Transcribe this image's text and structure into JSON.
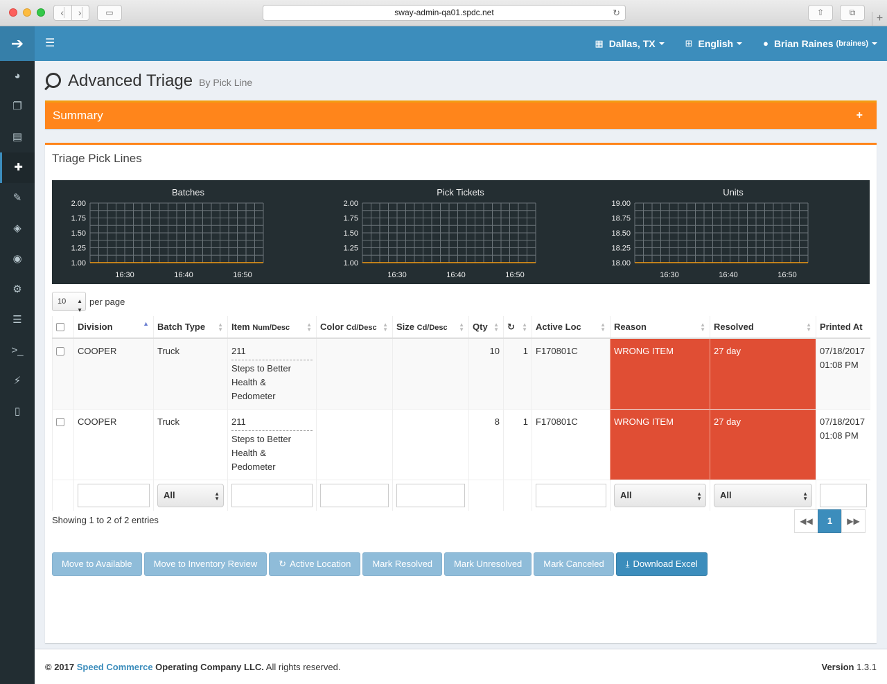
{
  "browser": {
    "url": "sway-admin-qa01.spdc.net",
    "back_icon": "chevron-left-icon",
    "forward_icon": "chevron-right-icon"
  },
  "topbar": {
    "location": "Dallas, TX",
    "language": "English",
    "user_name": "Brian Raines",
    "user_login": "(braines)"
  },
  "page": {
    "title": "Advanced Triage",
    "subtitle": "By Pick Line"
  },
  "summary": {
    "title": "Summary",
    "toggle": "+"
  },
  "box": {
    "title": "Triage Pick Lines"
  },
  "chart_data": [
    {
      "type": "line",
      "title": "Batches",
      "ylim": [
        1.0,
        2.0
      ],
      "yticks": [
        "2.00",
        "1.75",
        "1.50",
        "1.25",
        "1.00"
      ],
      "xticks": [
        "16:30",
        "16:40",
        "16:50"
      ],
      "series": [
        {
          "values": [
            1,
            1
          ]
        }
      ],
      "grid": true,
      "line_color": "#f39c12"
    },
    {
      "type": "line",
      "title": "Pick Tickets",
      "ylim": [
        1.0,
        2.0
      ],
      "yticks": [
        "2.00",
        "1.75",
        "1.50",
        "1.25",
        "1.00"
      ],
      "xticks": [
        "16:30",
        "16:40",
        "16:50"
      ],
      "series": [
        {
          "values": [
            1,
            1
          ]
        }
      ],
      "grid": true,
      "line_color": "#f39c12"
    },
    {
      "type": "line",
      "title": "Units",
      "ylim": [
        18.0,
        19.0
      ],
      "yticks": [
        "19.00",
        "18.75",
        "18.50",
        "18.25",
        "18.00"
      ],
      "xticks": [
        "16:30",
        "16:40",
        "16:50"
      ],
      "series": [
        {
          "values": [
            18,
            18
          ]
        }
      ],
      "grid": true,
      "line_color": "#f39c12"
    }
  ],
  "table": {
    "per_page_value": "10",
    "per_page_label": "per page",
    "columns": {
      "division": "Division",
      "batch_type": "Batch Type",
      "item": "Item",
      "item_small": "Num/Desc",
      "color": "Color",
      "color_small": "Cd/Desc",
      "size": "Size",
      "size_small": "Cd/Desc",
      "qty": "Qty",
      "active_loc": "Active Loc",
      "reason": "Reason",
      "resolved": "Resolved",
      "printed_at": "Printed At"
    },
    "rows": [
      {
        "division": "COOPER",
        "batch_type": "Truck",
        "item_num": "211",
        "item_desc": "Steps to Better Health & Pedometer",
        "color": "",
        "size": "",
        "qty": "10",
        "retries": "1",
        "active_loc": "F170801C",
        "reason": "WRONG ITEM",
        "resolved": "27 day",
        "printed_date": "07/18/2017",
        "printed_time": "01:08 PM"
      },
      {
        "division": "COOPER",
        "batch_type": "Truck",
        "item_num": "211",
        "item_desc": "Steps to Better Health & Pedometer",
        "color": "",
        "size": "",
        "qty": "8",
        "retries": "1",
        "active_loc": "F170801C",
        "reason": "WRONG ITEM",
        "resolved": "27 day",
        "printed_date": "07/18/2017",
        "printed_time": "01:08 PM"
      }
    ],
    "filters": {
      "batch_type": "All",
      "reason": "All",
      "resolved": "All"
    },
    "showing": "Showing 1 to 2 of 2 entries",
    "current_page": "1"
  },
  "actions": {
    "move_available": "Move to Available",
    "move_inventory": "Move to Inventory Review",
    "active_location": "Active Location",
    "mark_resolved": "Mark Resolved",
    "mark_unresolved": "Mark Unresolved",
    "mark_canceled": "Mark Canceled",
    "download_excel": "Download Excel"
  },
  "footer": {
    "prefix": "© 2017 ",
    "company": "Speed Commerce",
    "suffix": " Operating Company LLC.",
    "rights": " All rights reserved.",
    "version_label": "Version",
    "version": "1.3.1"
  },
  "colors": {
    "brand": "#3c8dbc",
    "summary": "#ff851b",
    "danger": "#e04e34",
    "sidebar": "#222d32"
  }
}
